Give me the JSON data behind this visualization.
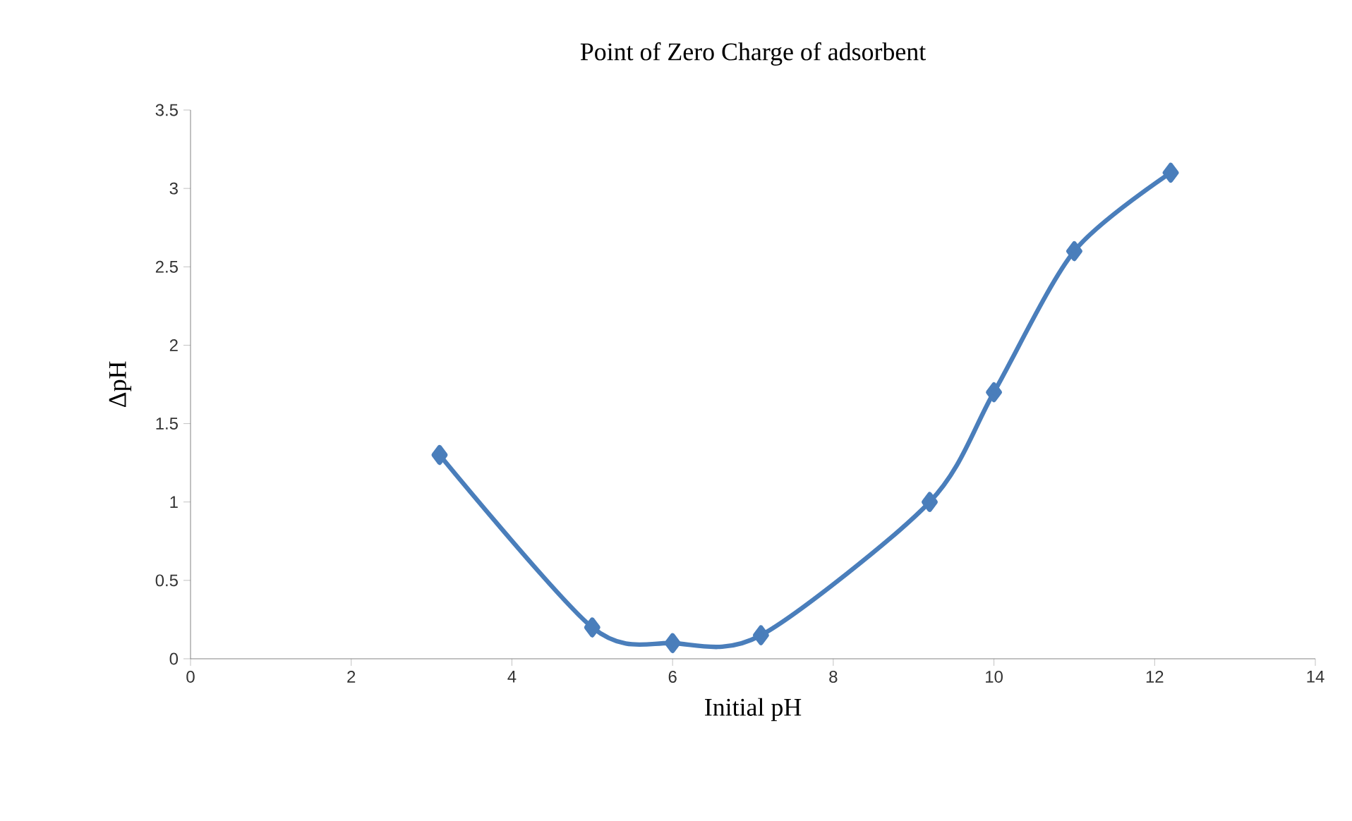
{
  "chart_data": {
    "type": "line",
    "title": "Point of Zero Charge of adsorbent",
    "xlabel": "Initial pH",
    "ylabel": "ΔpH",
    "x": [
      3.1,
      5,
      6,
      7.1,
      9.2,
      10,
      11,
      12.2
    ],
    "series": [
      {
        "color": "#4a7ebb",
        "values": [
          1.3,
          0.2,
          0.1,
          0.15,
          1.0,
          1.7,
          2.6,
          3.1
        ]
      }
    ],
    "xlim": [
      0,
      14
    ],
    "ylim": [
      0,
      3.5
    ],
    "xticks": [
      0,
      2,
      4,
      6,
      8,
      10,
      12,
      14
    ],
    "yticks": [
      0,
      0.5,
      1,
      1.5,
      2,
      2.5,
      3,
      3.5
    ],
    "marker": "diamond"
  }
}
